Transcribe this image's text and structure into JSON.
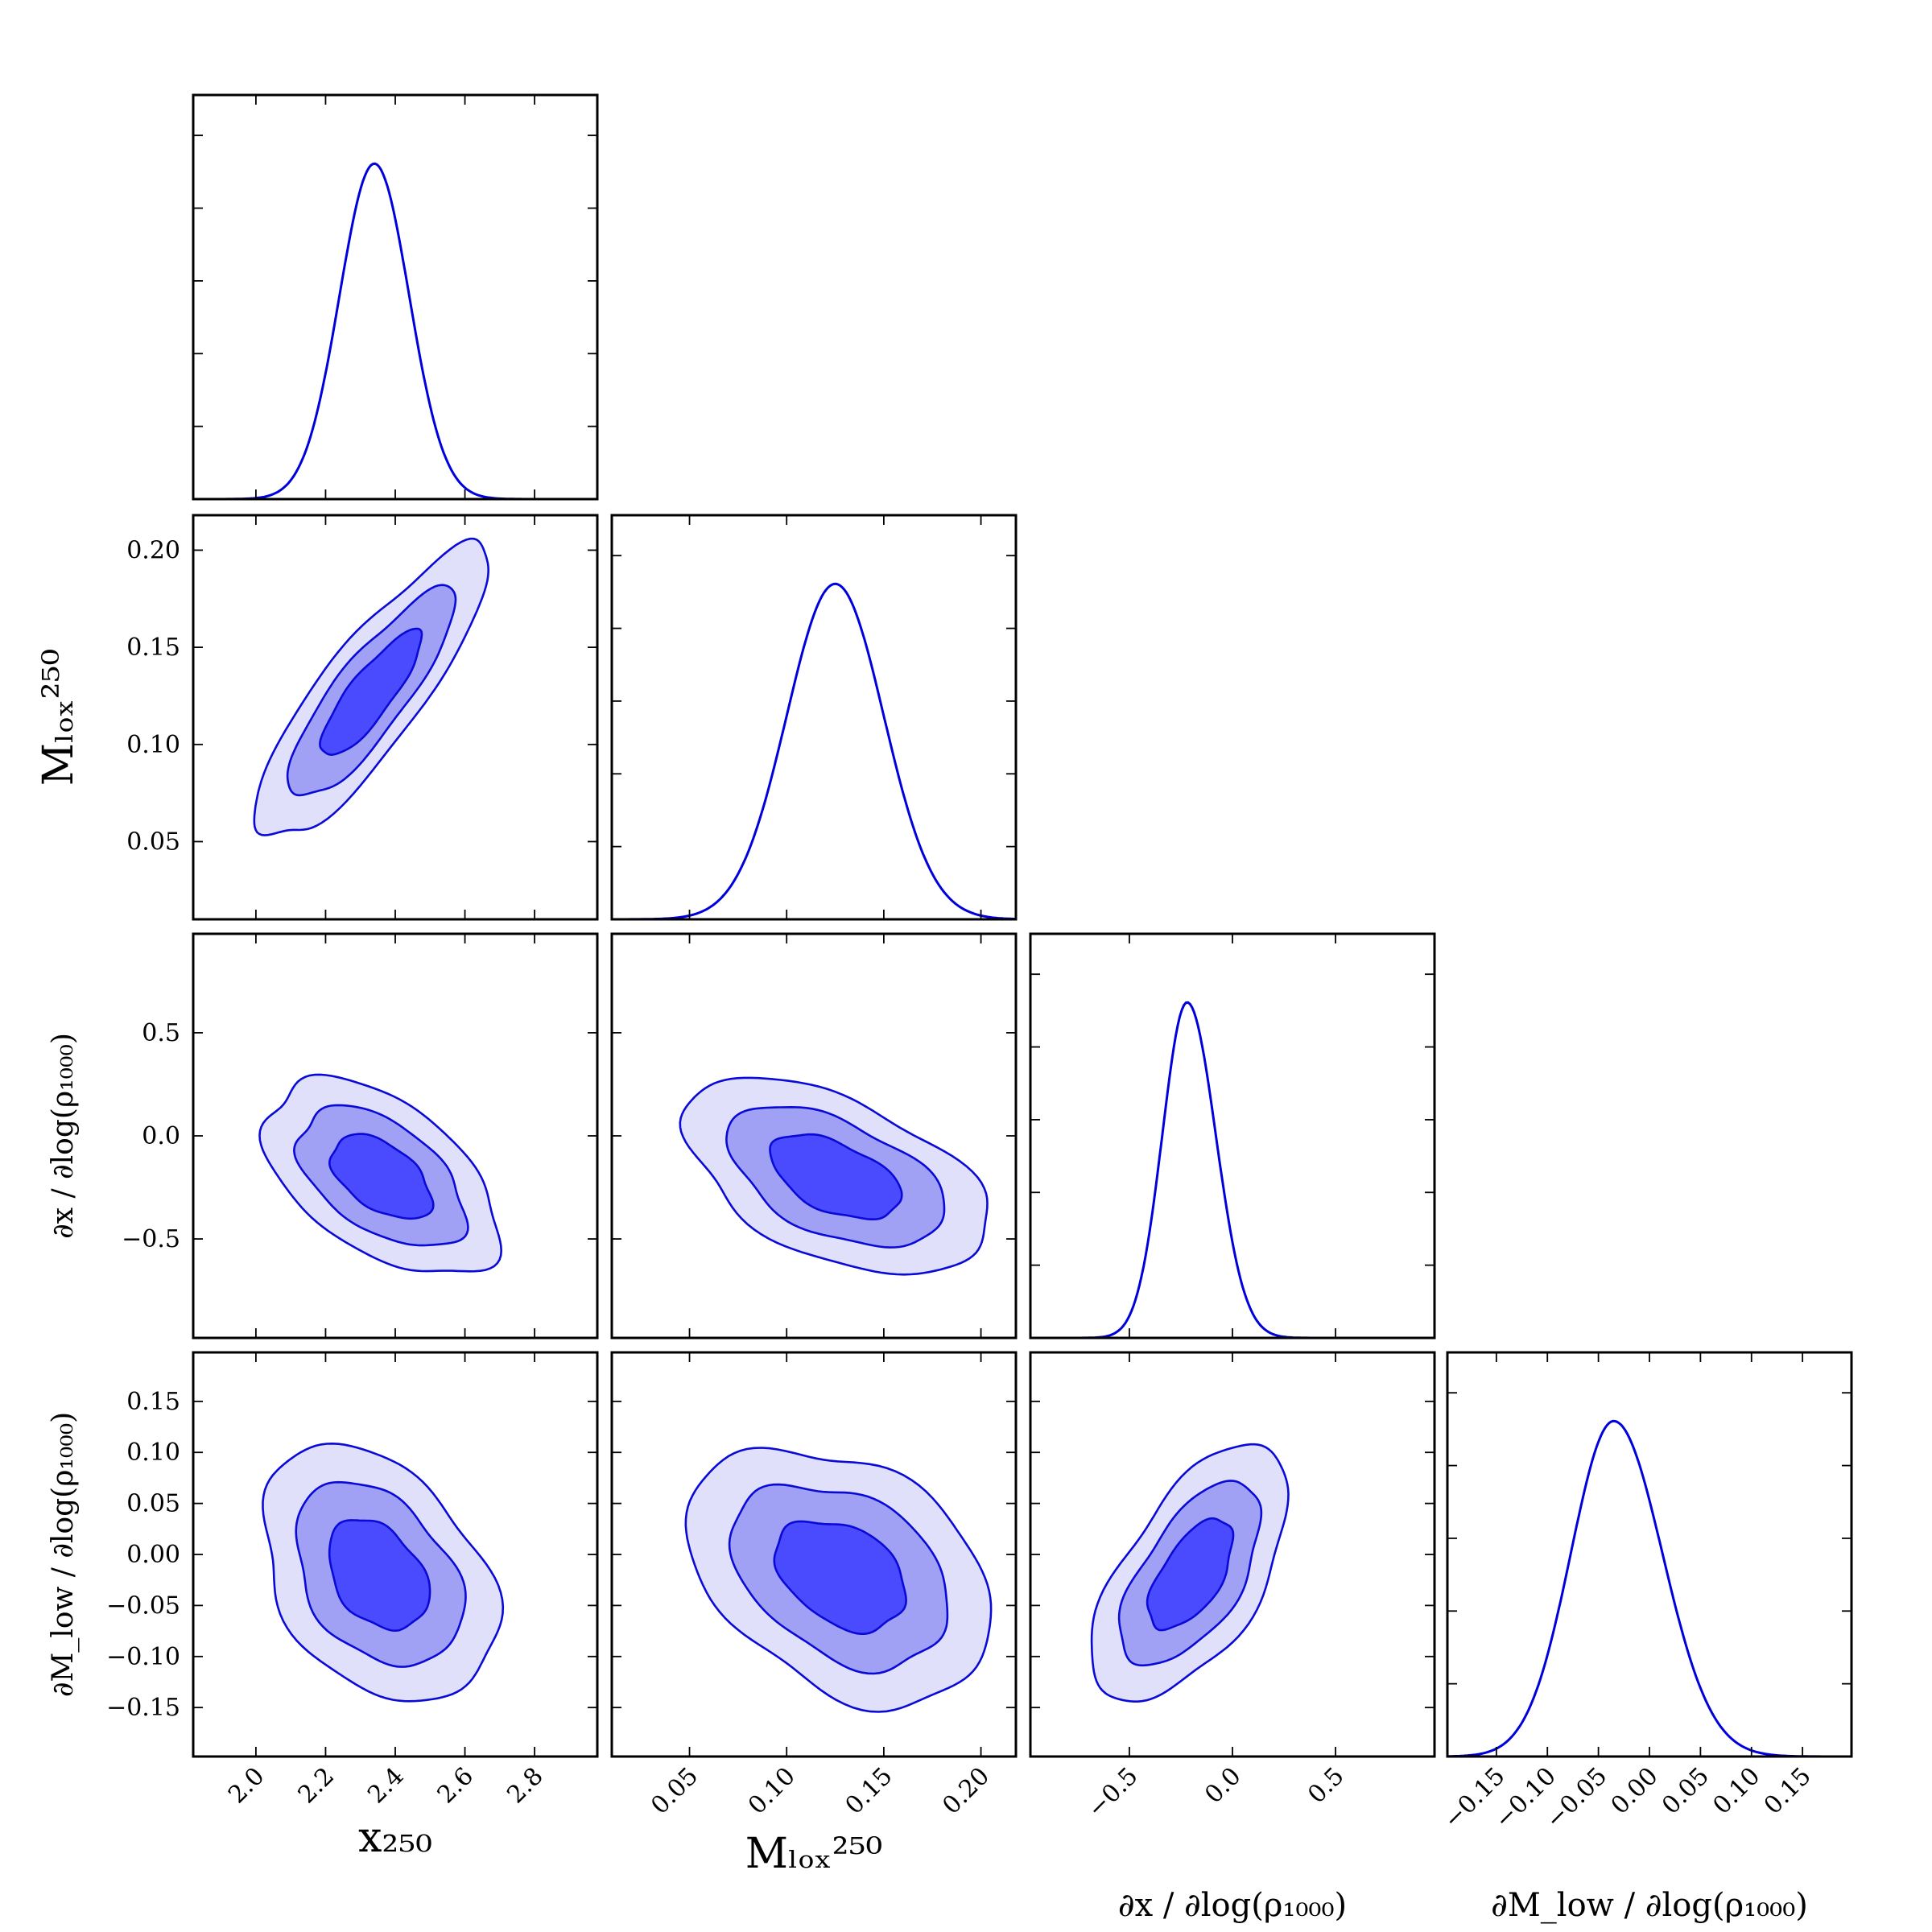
{
  "chart_data": {
    "type": "corner",
    "parameters": [
      {
        "id": "x250",
        "label": "x₂₅₀",
        "range": [
          1.82,
          2.98
        ],
        "ticks": [
          2.0,
          2.2,
          2.4,
          2.6,
          2.8
        ],
        "ticklabels": [
          "2.0",
          "2.2",
          "2.4",
          "2.6",
          "2.8"
        ]
      },
      {
        "id": "Mlow250",
        "label": "Mₗₒₓ²⁵⁰",
        "range": [
          0.01,
          0.218
        ],
        "ticks": [
          0.05,
          0.1,
          0.15,
          0.2
        ],
        "ticklabels": [
          "0.05",
          "0.10",
          "0.15",
          "0.20"
        ]
      },
      {
        "id": "dx_dlogrho",
        "label": "∂x / ∂log(ρ₁₀₀₀)",
        "range": [
          -0.98,
          0.98
        ],
        "ticks": [
          -0.5,
          0.0,
          0.5
        ],
        "ticklabels": [
          "−0.5",
          "0.0",
          "0.5"
        ]
      },
      {
        "id": "dM_dlogrho",
        "label": "∂M_low / ∂log(ρ₁₀₀₀)",
        "range": [
          -0.198,
          0.198
        ],
        "ticks": [
          -0.15,
          -0.1,
          -0.05,
          0.0,
          0.05,
          0.1,
          0.15
        ],
        "ticklabels": [
          "−0.15",
          "−0.10",
          "−0.05",
          "0.00",
          "0.05",
          "0.10",
          "0.15"
        ]
      }
    ],
    "marginals": [
      {
        "param": "x250",
        "mean": 2.34,
        "sigma": 0.1,
        "skew": 0.0
      },
      {
        "param": "Mlow250",
        "mean": 0.125,
        "sigma": 0.025,
        "skew": 0.0
      },
      {
        "param": "dx_dlogrho",
        "mean": -0.22,
        "sigma": 0.12,
        "skew": 0.35
      },
      {
        "param": "dM_dlogrho",
        "mean": -0.035,
        "sigma": 0.042,
        "skew": 0.3
      }
    ],
    "joint_contours": [
      {
        "xparam": "x250",
        "yparam": "Mlow250",
        "center": [
          2.33,
          0.126
        ],
        "corr": 0.85,
        "sx": 0.12,
        "sy": 0.027
      },
      {
        "xparam": "x250",
        "yparam": "dx_dlogrho",
        "center": [
          2.36,
          -0.2
        ],
        "corr": -0.5,
        "sx": 0.12,
        "sy": 0.17
      },
      {
        "xparam": "Mlow250",
        "yparam": "dx_dlogrho",
        "center": [
          0.125,
          -0.2
        ],
        "corr": -0.5,
        "sx": 0.028,
        "sy": 0.17
      },
      {
        "xparam": "x250",
        "yparam": "dM_dlogrho",
        "center": [
          2.35,
          -0.02
        ],
        "corr": -0.35,
        "sx": 0.12,
        "sy": 0.045
      },
      {
        "xparam": "Mlow250",
        "yparam": "dM_dlogrho",
        "center": [
          0.128,
          -0.02
        ],
        "corr": -0.35,
        "sx": 0.028,
        "sy": 0.045
      },
      {
        "xparam": "dx_dlogrho",
        "yparam": "dM_dlogrho",
        "center": [
          -0.2,
          -0.02
        ],
        "corr": 0.6,
        "sx": 0.17,
        "sy": 0.045
      }
    ],
    "contour_levels": [
      "68%",
      "95%",
      "99%"
    ],
    "colors": {
      "line": "#0000dd",
      "inner": "#4a4aff",
      "middle": "#a0a0f5",
      "outer": "#e0e0fb"
    },
    "grid": false,
    "legend": "none"
  }
}
